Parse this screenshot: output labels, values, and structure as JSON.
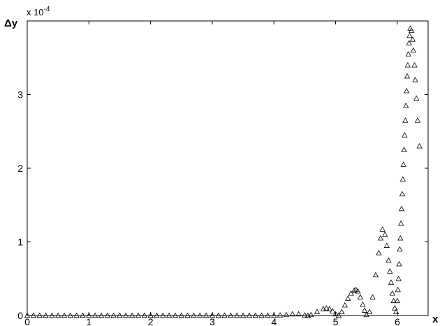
{
  "chart_data": {
    "type": "scatter",
    "marker": "triangle",
    "color": "#000000",
    "xlabel": "x",
    "ylabel": "Δy",
    "y_multiplier": "x 10",
    "y_multiplier_exponent": "-4",
    "xlim": [
      0,
      6.5
    ],
    "ylim": [
      0,
      4
    ],
    "xticks": [
      0,
      1,
      2,
      3,
      4,
      5,
      6
    ],
    "yticks": [
      0,
      1,
      2,
      3
    ],
    "x": [
      0,
      0.1,
      0.2,
      0.3,
      0.4,
      0.5,
      0.6,
      0.7,
      0.8,
      0.9,
      1,
      1.1,
      1.2,
      1.3,
      1.4,
      1.5,
      1.6,
      1.7,
      1.8,
      1.9,
      2,
      2.1,
      2.2,
      2.3,
      2.4,
      2.5,
      2.6,
      2.7,
      2.8,
      2.9,
      3,
      3.1,
      3.2,
      3.3,
      3.4,
      3.5,
      3.6,
      3.7,
      3.8,
      3.9,
      4,
      4.1,
      4.2,
      4.3,
      4.4,
      4.5,
      4.55,
      4.6,
      4.7,
      4.8,
      4.85,
      4.9,
      4.95,
      5,
      5.05,
      5.1,
      5.15,
      5.2,
      5.25,
      5.3,
      5.33,
      5.36,
      5.4,
      5.44,
      5.47,
      5.5,
      5.55,
      5.6,
      5.65,
      5.7,
      5.73,
      5.76,
      5.8,
      5.83,
      5.86,
      5.88,
      5.9,
      5.92,
      5.94,
      5.96,
      5.98,
      6,
      6.01,
      6.02,
      6.03,
      6.04,
      6.05,
      6.06,
      6.07,
      6.08,
      6.09,
      6.1,
      6.11,
      6.12,
      6.13,
      6.14,
      6.15,
      6.16,
      6.17,
      6.18,
      6.19,
      6.2,
      6.21,
      6.23,
      6.25,
      6.26,
      6.28,
      6.29,
      6.31,
      6.33,
      6.36
    ],
    "y": [
      0,
      0,
      0,
      0,
      0,
      0,
      0,
      0,
      0,
      0,
      0,
      0,
      0,
      0,
      0,
      0,
      0,
      0,
      0,
      0,
      0,
      0,
      0,
      0,
      0,
      0,
      0,
      0,
      0,
      0,
      0,
      0,
      0,
      0,
      0,
      0,
      0,
      0,
      0,
      0,
      0,
      0.005,
      0.01,
      0.02,
      0.02,
      0.005,
      0,
      0.01,
      0.05,
      0.09,
      0.1,
      0.09,
      0.06,
      0.02,
      0,
      0.05,
      0.14,
      0.23,
      0.3,
      0.34,
      0.35,
      0.33,
      0.25,
      0.15,
      0.07,
      0.01,
      0.05,
      0.25,
      0.55,
      0.85,
      1.05,
      1.17,
      1.1,
      0.95,
      0.75,
      0.6,
      0.45,
      0.3,
      0.2,
      0.1,
      0.05,
      0.2,
      0.35,
      0.5,
      0.7,
      0.9,
      1.05,
      1.25,
      1.45,
      1.65,
      1.85,
      2.05,
      2.25,
      2.45,
      2.65,
      2.85,
      3.05,
      3.25,
      3.4,
      3.55,
      3.7,
      3.8,
      3.9,
      3.87,
      3.75,
      3.6,
      3.4,
      3.2,
      2.95,
      2.65,
      2.3
    ]
  }
}
